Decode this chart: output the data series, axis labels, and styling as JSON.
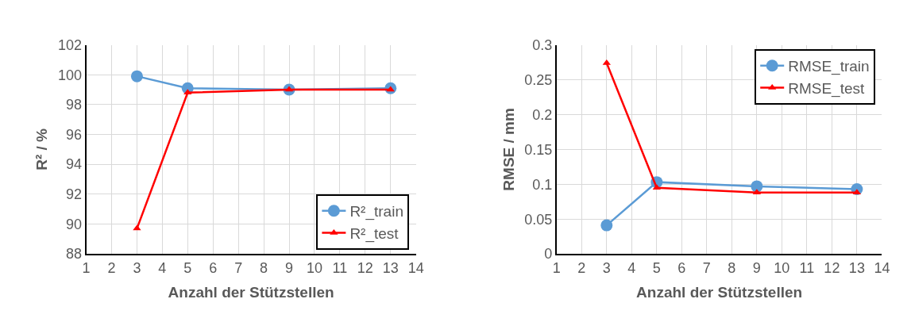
{
  "chart_data": [
    {
      "type": "line",
      "xlabel": "Anzahl der Stützstellen",
      "ylabel": "R² / %",
      "x": [
        3,
        5,
        9,
        13
      ],
      "xlim": [
        1,
        14
      ],
      "xticks": [
        1,
        2,
        3,
        4,
        5,
        6,
        7,
        8,
        9,
        10,
        11,
        12,
        13,
        14
      ],
      "ylim": [
        88,
        102
      ],
      "yticks": [
        88,
        90,
        92,
        94,
        96,
        98,
        100,
        102
      ],
      "grid": true,
      "legend": "bottom right",
      "series": [
        {
          "name": "R²_train",
          "color": "#5b9bd5",
          "marker": "circle",
          "values": [
            99.9,
            99.1,
            99.0,
            99.1
          ]
        },
        {
          "name": "R²_test",
          "color": "#ff0000",
          "marker": "triangle",
          "values": [
            89.7,
            98.8,
            99.0,
            99.0
          ]
        }
      ]
    },
    {
      "type": "line",
      "xlabel": "Anzahl der Stützstellen",
      "ylabel": "RMSE / mm",
      "x": [
        3,
        5,
        9,
        13
      ],
      "xlim": [
        1,
        14
      ],
      "xticks": [
        1,
        2,
        3,
        4,
        5,
        6,
        7,
        8,
        9,
        10,
        11,
        12,
        13,
        14
      ],
      "ylim": [
        0,
        0.3
      ],
      "yticks": [
        0,
        0.05,
        0.1,
        0.15,
        0.2,
        0.25,
        0.3
      ],
      "grid": true,
      "legend": "top right",
      "series": [
        {
          "name": "RMSE_train",
          "color": "#5b9bd5",
          "marker": "circle",
          "values": [
            0.041,
            0.103,
            0.097,
            0.093
          ]
        },
        {
          "name": "RMSE_test",
          "color": "#ff0000",
          "marker": "triangle",
          "values": [
            0.274,
            0.095,
            0.088,
            0.088
          ]
        }
      ]
    }
  ]
}
